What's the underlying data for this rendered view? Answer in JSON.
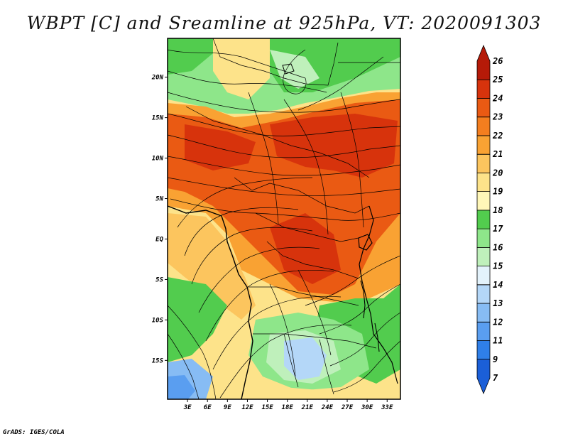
{
  "title": "WBPT [C] and Sreamline at 925hPa, VT: 2020091303",
  "credit": "GrADS: IGES/COLA",
  "map": {
    "lat_labels": [
      "20N",
      "15N",
      "10N",
      "5N",
      "EQ",
      "5S",
      "10S",
      "15S"
    ],
    "lat_values": [
      20,
      15,
      10,
      5,
      0,
      -5,
      -10,
      -15
    ],
    "lon_labels": [
      "3E",
      "6E",
      "9E",
      "12E",
      "15E",
      "18E",
      "21E",
      "24E",
      "27E",
      "30E",
      "33E"
    ],
    "lon_values": [
      3,
      6,
      9,
      12,
      15,
      18,
      21,
      24,
      27,
      30,
      33
    ],
    "lat_range": [
      -19.8,
      24.8
    ],
    "lon_range": [
      0,
      35
    ]
  },
  "colorbar": {
    "labels": [
      "7",
      "9",
      "11",
      "12",
      "13",
      "14",
      "15",
      "16",
      "17",
      "18",
      "19",
      "20",
      "21",
      "22",
      "23",
      "24",
      "25",
      "26"
    ],
    "colors": [
      "#1b5fd8",
      "#2f7fe8",
      "#5a9ef0",
      "#87bcf4",
      "#b4d7f8",
      "#e3f2fb",
      "#bff0bb",
      "#8ee68a",
      "#52cc4e",
      "#fff7b8",
      "#fde38a",
      "#fcc55e",
      "#f9a233",
      "#f47e1f",
      "#ea5a13",
      "#d7330c",
      "#b51a08"
    ]
  },
  "colors": {
    "cool_dark": "#2f7fe8",
    "cool_light": "#b4d7f8",
    "green_dark": "#52cc4e",
    "green_light": "#bff0bb",
    "yellow": "#fde38a",
    "orange": "#f9a233",
    "red": "#ea5a13",
    "deep_red": "#d7330c"
  }
}
